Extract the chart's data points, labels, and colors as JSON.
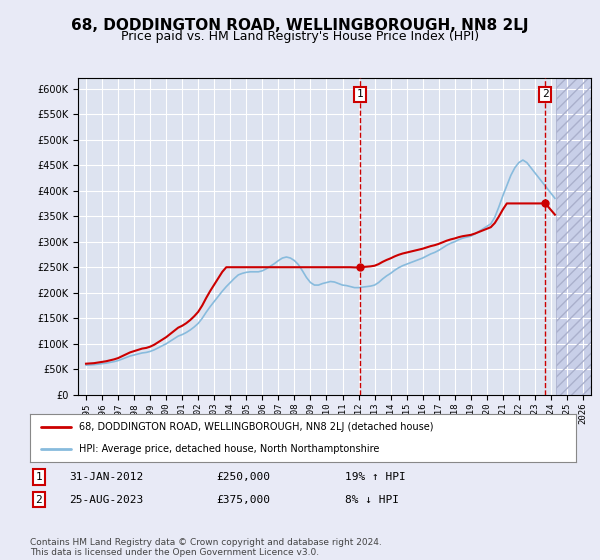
{
  "title": "68, DODDINGTON ROAD, WELLINGBOROUGH, NN8 2LJ",
  "subtitle": "Price paid vs. HM Land Registry's House Price Index (HPI)",
  "title_fontsize": 11,
  "subtitle_fontsize": 9,
  "background_color": "#e8eaf6",
  "plot_bg_color": "#dde3f0",
  "hatch_color": "#c8cfe8",
  "grid_color": "#ffffff",
  "line1_color": "#cc0000",
  "line2_color": "#88bbdd",
  "vline_color": "#cc0000",
  "annotation_box_color": "#cc0000",
  "ylim": [
    0,
    620000
  ],
  "yticks": [
    0,
    50000,
    100000,
    150000,
    200000,
    250000,
    300000,
    350000,
    400000,
    450000,
    500000,
    550000,
    600000
  ],
  "xlim_start": 1994.5,
  "xlim_end": 2026.5,
  "xticks": [
    1995,
    1996,
    1997,
    1998,
    1999,
    2000,
    2001,
    2002,
    2003,
    2004,
    2005,
    2006,
    2007,
    2008,
    2009,
    2010,
    2011,
    2012,
    2013,
    2014,
    2015,
    2016,
    2017,
    2018,
    2019,
    2020,
    2021,
    2022,
    2023,
    2024,
    2025,
    2026
  ],
  "sale1_x": 2012.08,
  "sale1_y": 250000,
  "sale2_x": 2023.65,
  "sale2_y": 375000,
  "hatch_start": 2024.3,
  "legend_label1": "68, DODDINGTON ROAD, WELLINGBOROUGH, NN8 2LJ (detached house)",
  "legend_label2": "HPI: Average price, detached house, North Northamptonshire",
  "footnote": "Contains HM Land Registry data © Crown copyright and database right 2024.\nThis data is licensed under the Open Government Licence v3.0.",
  "annot1_num": "1",
  "annot1_date": "31-JAN-2012",
  "annot1_price": "£250,000",
  "annot1_pct": "19% ↑ HPI",
  "annot2_num": "2",
  "annot2_date": "25-AUG-2023",
  "annot2_price": "£375,000",
  "annot2_pct": "8% ↓ HPI",
  "hpi_years": [
    1995.0,
    1995.25,
    1995.5,
    1995.75,
    1996.0,
    1996.25,
    1996.5,
    1996.75,
    1997.0,
    1997.25,
    1997.5,
    1997.75,
    1998.0,
    1998.25,
    1998.5,
    1998.75,
    1999.0,
    1999.25,
    1999.5,
    1999.75,
    2000.0,
    2000.25,
    2000.5,
    2000.75,
    2001.0,
    2001.25,
    2001.5,
    2001.75,
    2002.0,
    2002.25,
    2002.5,
    2002.75,
    2003.0,
    2003.25,
    2003.5,
    2003.75,
    2004.0,
    2004.25,
    2004.5,
    2004.75,
    2005.0,
    2005.25,
    2005.5,
    2005.75,
    2006.0,
    2006.25,
    2006.5,
    2006.75,
    2007.0,
    2007.25,
    2007.5,
    2007.75,
    2008.0,
    2008.25,
    2008.5,
    2008.75,
    2009.0,
    2009.25,
    2009.5,
    2009.75,
    2010.0,
    2010.25,
    2010.5,
    2010.75,
    2011.0,
    2011.25,
    2011.5,
    2011.75,
    2012.0,
    2012.25,
    2012.5,
    2012.75,
    2013.0,
    2013.25,
    2013.5,
    2013.75,
    2014.0,
    2014.25,
    2014.5,
    2014.75,
    2015.0,
    2015.25,
    2015.5,
    2015.75,
    2016.0,
    2016.25,
    2016.5,
    2016.75,
    2017.0,
    2017.25,
    2017.5,
    2017.75,
    2018.0,
    2018.25,
    2018.5,
    2018.75,
    2019.0,
    2019.25,
    2019.5,
    2019.75,
    2020.0,
    2020.25,
    2020.5,
    2020.75,
    2021.0,
    2021.25,
    2021.5,
    2021.75,
    2022.0,
    2022.25,
    2022.5,
    2022.75,
    2023.0,
    2023.25,
    2023.5,
    2023.75,
    2024.0,
    2024.25
  ],
  "hpi_vals": [
    58000,
    58500,
    59000,
    60000,
    61000,
    62000,
    63500,
    65000,
    67000,
    70000,
    73000,
    76000,
    78000,
    80000,
    82000,
    83000,
    85000,
    88000,
    92000,
    96000,
    100000,
    105000,
    110000,
    115000,
    118000,
    122000,
    127000,
    133000,
    140000,
    150000,
    162000,
    173000,
    183000,
    193000,
    203000,
    212000,
    220000,
    228000,
    235000,
    238000,
    240000,
    241000,
    241000,
    241000,
    243000,
    247000,
    252000,
    257000,
    263000,
    268000,
    270000,
    268000,
    263000,
    255000,
    243000,
    230000,
    220000,
    215000,
    215000,
    218000,
    220000,
    222000,
    221000,
    218000,
    215000,
    214000,
    212000,
    210000,
    210000,
    211000,
    212000,
    213000,
    215000,
    220000,
    227000,
    233000,
    238000,
    244000,
    249000,
    253000,
    256000,
    259000,
    262000,
    265000,
    268000,
    272000,
    276000,
    279000,
    283000,
    288000,
    293000,
    297000,
    300000,
    304000,
    307000,
    309000,
    311000,
    315000,
    320000,
    325000,
    330000,
    335000,
    348000,
    368000,
    390000,
    410000,
    430000,
    445000,
    455000,
    460000,
    455000,
    445000,
    435000,
    425000,
    415000,
    405000,
    395000,
    385000
  ],
  "sale_years": [
    1995.5,
    2012.08,
    2023.65
  ],
  "sale_prices": [
    62000,
    250000,
    375000
  ]
}
